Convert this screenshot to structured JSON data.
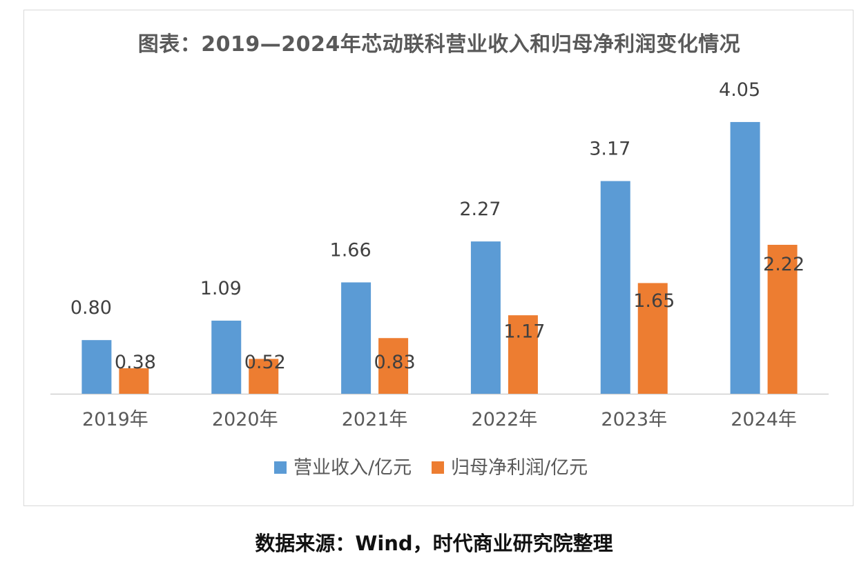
{
  "chart_data": {
    "type": "bar",
    "title": "图表：2019—2024年芯动联科营业收入和归母净利润变化情况",
    "categories": [
      "2019年",
      "2020年",
      "2021年",
      "2022年",
      "2023年",
      "2024年"
    ],
    "series": [
      {
        "name": "营业收入/亿元",
        "color": "#5b9bd5",
        "values": [
          0.8,
          1.09,
          1.66,
          2.27,
          3.17,
          4.05
        ],
        "labels": [
          "0.80",
          "1.09",
          "1.66",
          "2.27",
          "3.17",
          "4.05"
        ]
      },
      {
        "name": "归母净利润/亿元",
        "color": "#ed7d31",
        "values": [
          0.38,
          0.52,
          0.83,
          1.17,
          1.65,
          2.22
        ],
        "labels": [
          "0.38",
          "0.52",
          "0.83",
          "1.17",
          "1.65",
          "2.22"
        ]
      }
    ],
    "ylim": [
      0,
      4.5
    ],
    "grid": false,
    "legend": "bottom"
  },
  "source_note": "数据来源：Wind，时代商业研究院整理"
}
